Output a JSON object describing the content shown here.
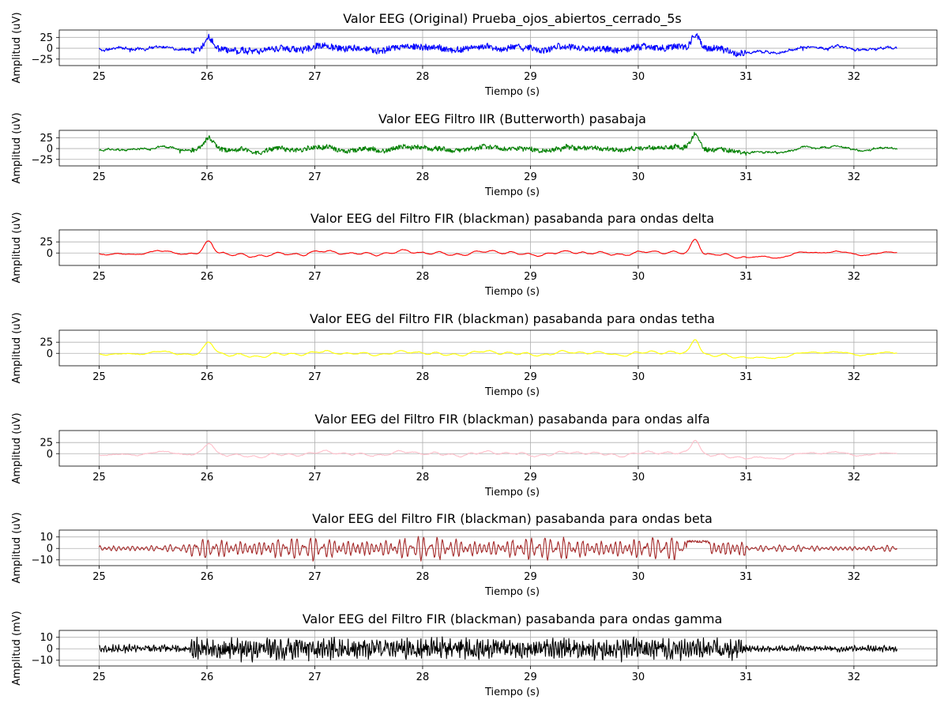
{
  "figure": {
    "background": "#ffffff"
  },
  "chart_data": [
    {
      "type": "line",
      "title": "Valor EEG (Original) Prueba_ojos_abiertos_cerrado_5s",
      "xlabel": "Tiempo (s)",
      "ylabel": "Amplitud (uV)",
      "color": "#0000ff",
      "xlim": [
        24.63,
        32.77
      ],
      "ylim": [
        -40,
        42
      ],
      "xticks": [
        25,
        26,
        27,
        28,
        29,
        30,
        31,
        32
      ],
      "yticks": [
        -25,
        0,
        25
      ],
      "grid": true,
      "signal": {
        "amp": 7,
        "hf": 1.0,
        "spike": 10,
        "seed": 11
      }
    },
    {
      "type": "line",
      "title": "Valor EEG Filtro IIR (Butterworth) pasabaja",
      "xlabel": "Tiempo (s)",
      "ylabel": "Amplitud (uV)",
      "color": "#008000",
      "xlim": [
        24.63,
        32.77
      ],
      "ylim": [
        -40,
        42
      ],
      "xticks": [
        25,
        26,
        27,
        28,
        29,
        30,
        31,
        32
      ],
      "yticks": [
        -25,
        0,
        25
      ],
      "grid": true,
      "signal": {
        "amp": 6,
        "hf": 0.85,
        "spike": 7,
        "seed": 23
      }
    },
    {
      "type": "line",
      "title": "Valor EEG del Filtro FIR (blackman) pasabanda para ondas delta",
      "xlabel": "Tiempo (s)",
      "ylabel": "Amplitud (uV)",
      "color": "#ff0000",
      "xlim": [
        24.63,
        32.77
      ],
      "ylim": [
        -28,
        52
      ],
      "xticks": [
        25,
        26,
        27,
        28,
        29,
        30,
        31,
        32
      ],
      "yticks": [
        0,
        25
      ],
      "grid": true,
      "signal": {
        "amp": 4,
        "hf": 0.0,
        "spike": 0,
        "seed": 37
      }
    },
    {
      "type": "line",
      "title": "Valor EEG del Filtro FIR (blackman) pasabanda para ondas tetha",
      "xlabel": "Tiempo (s)",
      "ylabel": "Amplitud (uV)",
      "color": "#ffff00",
      "xlim": [
        24.63,
        32.77
      ],
      "ylim": [
        -28,
        52
      ],
      "xticks": [
        25,
        26,
        27,
        28,
        29,
        30,
        31,
        32
      ],
      "yticks": [
        0,
        25
      ],
      "grid": true,
      "signal": {
        "amp": 4,
        "hf": 0.0,
        "spike": 0,
        "seed": 41
      }
    },
    {
      "type": "line",
      "title": "Valor EEG del Filtro FIR (blackman) pasabanda para ondas alfa",
      "xlabel": "Tiempo (s)",
      "ylabel": "Amplitud (uV)",
      "color": "#ffc0cb",
      "xlim": [
        24.63,
        32.77
      ],
      "ylim": [
        -28,
        52
      ],
      "xticks": [
        25,
        26,
        27,
        28,
        29,
        30,
        31,
        32
      ],
      "yticks": [
        0,
        25
      ],
      "grid": true,
      "signal": {
        "amp": 4,
        "hf": 0.25,
        "spike": 0,
        "seed": 53
      }
    },
    {
      "type": "line",
      "title": "Valor EEG del Filtro FIR (blackman) pasabanda para ondas beta",
      "xlabel": "Tiempo (s)",
      "ylabel": "Amplitud (uV)",
      "color": "#a52a2a",
      "xlim": [
        24.63,
        32.77
      ],
      "ylim": [
        -15,
        16
      ],
      "xticks": [
        25,
        26,
        27,
        28,
        29,
        30,
        31,
        32
      ],
      "yticks": [
        -10,
        0,
        10
      ],
      "grid": true,
      "signal": {
        "amp": 4,
        "hf": 1.0,
        "spike": 0,
        "seed": 67
      }
    },
    {
      "type": "line",
      "title": "Valor EEG del Filtro FIR (blackman) pasabanda para ondas gamma",
      "xlabel": "Tiempo (s)",
      "ylabel": "Amplitud (mV)",
      "color": "#000000",
      "xlim": [
        24.63,
        32.77
      ],
      "ylim": [
        -15,
        16
      ],
      "xticks": [
        25,
        26,
        27,
        28,
        29,
        30,
        31,
        32
      ],
      "yticks": [
        -10,
        0,
        10
      ],
      "grid": true,
      "signal": {
        "amp": 5,
        "hf": 1.0,
        "spike": 0,
        "seed": 79
      }
    }
  ]
}
